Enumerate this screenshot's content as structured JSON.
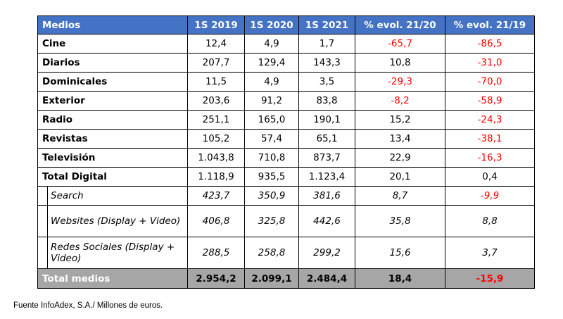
{
  "table": {
    "headers": [
      "Medios",
      "1S 2019",
      "1S 2020",
      "1S 2021",
      "% evol. 21/20",
      "% evol. 21/19"
    ],
    "rows": [
      {
        "label": "Cine",
        "v2019": "12,4",
        "v2020": "4,9",
        "v2021": "1,7",
        "evol2120": "-65,7",
        "evol2119": "-86,5"
      },
      {
        "label": "Diarios",
        "v2019": "207,7",
        "v2020": "129,4",
        "v2021": "143,3",
        "evol2120": "10,8",
        "evol2119": "-31,0"
      },
      {
        "label": "Dominicales",
        "v2019": "11,5",
        "v2020": "4,9",
        "v2021": "3,5",
        "evol2120": "-29,3",
        "evol2119": "-70,0"
      },
      {
        "label": "Exterior",
        "v2019": "203,6",
        "v2020": "91,2",
        "v2021": "83,8",
        "evol2120": "-8,2",
        "evol2119": "-58,9"
      },
      {
        "label": "Radio",
        "v2019": "251,1",
        "v2020": "165,0",
        "v2021": "190,1",
        "evol2120": "15,2",
        "evol2119": "-24,3"
      },
      {
        "label": "Revistas",
        "v2019": "105,2",
        "v2020": "57,4",
        "v2021": "65,1",
        "evol2120": "13,4",
        "evol2119": "-38,1"
      },
      {
        "label": "Televisión",
        "v2019": "1.043,8",
        "v2020": "710,8",
        "v2021": "873,7",
        "evol2120": "22,9",
        "evol2119": "-16,3"
      },
      {
        "label": "Total Digital",
        "v2019": "1.118,9",
        "v2020": "935,5",
        "v2021": "1.123,4",
        "evol2120": "20,1",
        "evol2119": "0,4"
      }
    ],
    "subrows": [
      {
        "label": "Search",
        "v2019": "423,7",
        "v2020": "350,9",
        "v2021": "381,6",
        "evol2120": "8,7",
        "evol2119": "-9,9"
      },
      {
        "label": "Websites (Display + Video)",
        "v2019": "406,8",
        "v2020": "325,8",
        "v2021": "442,6",
        "evol2120": "35,8",
        "evol2119": "8,8"
      },
      {
        "label": "Redes Sociales (Display + Video)",
        "v2019": "288,5",
        "v2020": "258,8",
        "v2021": "299,2",
        "evol2120": "15,6",
        "evol2119": "3,7"
      }
    ],
    "total": {
      "label": "Total medios",
      "v2019": "2.954,2",
      "v2020": "2.099,1",
      "v2021": "2.484,4",
      "evol2120": "18,4",
      "evol2119": "-15,9"
    }
  },
  "footnote": "Fuente InfoAdex, S.A./ Millones de euros.",
  "colors": {
    "header_bg": "#4472c4",
    "negative": "#ff0000",
    "total_bg": "#a6a6a6"
  }
}
